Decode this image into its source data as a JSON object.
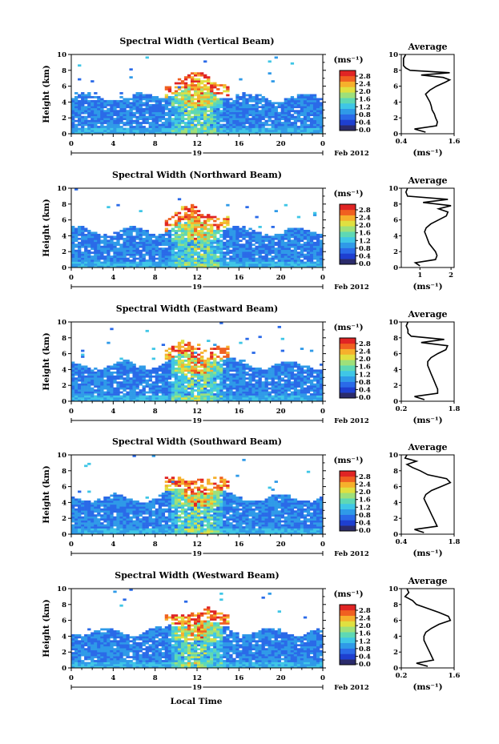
{
  "chart_data": [
    {
      "type": "heatmap",
      "title": "Spectral Width (Vertical Beam)",
      "ylabel": "Height (km)",
      "x_ticks": [
        "0",
        "4",
        "8",
        "12",
        "16",
        "20",
        "0"
      ],
      "day_label": "19",
      "date_label": "Feb 2012",
      "ylim": [
        0,
        10
      ],
      "y_ticks": [
        "0",
        "2",
        "4",
        "6",
        "8",
        "10"
      ],
      "colorbar": {
        "unit": "(ms⁻¹)",
        "ticks": [
          "0.0",
          "0.4",
          "0.8",
          "1.2",
          "1.6",
          "2.0",
          "2.4",
          "2.8"
        ]
      },
      "average": {
        "title": "Average",
        "xlabel": "(ms⁻¹)",
        "xlim": [
          0.4,
          1.6
        ],
        "x_ticks": [
          "0.4",
          "1.6"
        ],
        "height": [
          0.2,
          0.6,
          1.0,
          1.5,
          2.0,
          2.5,
          3.0,
          3.5,
          4.0,
          4.5,
          5.0,
          5.5,
          6.0,
          6.5,
          6.8,
          7.1,
          7.4,
          7.7,
          8.0,
          8.3,
          8.6,
          9.0,
          9.5,
          10.0
        ],
        "value": [
          0.95,
          0.7,
          1.2,
          1.22,
          1.18,
          1.15,
          1.1,
          1.08,
          1.05,
          1.0,
          0.95,
          1.05,
          1.2,
          1.4,
          1.5,
          1.35,
          0.85,
          1.5,
          0.6,
          0.5,
          0.45,
          0.45,
          0.45,
          0.5
        ]
      }
    },
    {
      "type": "heatmap",
      "title": "Spectral Width (Northward Beam)",
      "ylabel": "Height (km)",
      "x_ticks": [
        "0",
        "4",
        "8",
        "12",
        "16",
        "20",
        "0"
      ],
      "day_label": "19",
      "date_label": "Feb 2012",
      "ylim": [
        0,
        10
      ],
      "y_ticks": [
        "0",
        "2",
        "4",
        "6",
        "8",
        "10"
      ],
      "colorbar": {
        "unit": "(ms⁻¹)",
        "ticks": [
          "0.0",
          "0.4",
          "0.8",
          "1.2",
          "1.6",
          "2.0",
          "2.4",
          "2.8"
        ]
      },
      "average": {
        "title": "Average",
        "xlabel": "(ms⁻¹)",
        "xlim": [
          0.4,
          2.1
        ],
        "x_ticks": [
          "1",
          "2"
        ],
        "height": [
          0.2,
          0.6,
          1.0,
          1.5,
          2.0,
          2.5,
          3.0,
          3.5,
          4.0,
          4.5,
          5.0,
          5.5,
          6.0,
          6.5,
          7.0,
          7.4,
          7.8,
          8.2,
          8.6,
          9.0,
          9.5,
          10.0
        ],
        "value": [
          1.0,
          0.85,
          1.5,
          1.55,
          1.5,
          1.4,
          1.3,
          1.25,
          1.2,
          1.15,
          1.2,
          1.35,
          1.6,
          1.85,
          1.9,
          1.6,
          2.0,
          1.1,
          1.9,
          0.6,
          0.55,
          0.6
        ]
      }
    },
    {
      "type": "heatmap",
      "title": "Spectral Width (Eastward Beam)",
      "ylabel": "Height (km)",
      "x_ticks": [
        "0",
        "4",
        "8",
        "12",
        "16",
        "20",
        "0"
      ],
      "day_label": "19",
      "date_label": "Feb 2012",
      "ylim": [
        0,
        10
      ],
      "y_ticks": [
        "0",
        "2",
        "4",
        "6",
        "8",
        "10"
      ],
      "colorbar": {
        "unit": "(ms⁻¹)",
        "ticks": [
          "0.0",
          "0.4",
          "0.8",
          "1.2",
          "1.6",
          "2.0",
          "2.4",
          "2.8"
        ]
      },
      "average": {
        "title": "Average",
        "xlabel": "(ms⁻¹)",
        "xlim": [
          0.2,
          1.8
        ],
        "x_ticks": [
          "0.2",
          "1.8"
        ],
        "height": [
          0.2,
          0.6,
          1.0,
          1.5,
          2.0,
          2.5,
          3.0,
          3.5,
          4.0,
          4.5,
          5.0,
          5.5,
          6.0,
          6.5,
          7.0,
          7.4,
          7.8,
          8.2,
          8.6,
          9.0,
          9.5,
          10.0
        ],
        "value": [
          0.9,
          0.6,
          1.3,
          1.3,
          1.25,
          1.2,
          1.15,
          1.1,
          1.05,
          1.0,
          1.0,
          1.1,
          1.3,
          1.55,
          1.6,
          0.8,
          1.5,
          0.5,
          0.4,
          0.4,
          0.35,
          0.4
        ]
      }
    },
    {
      "type": "heatmap",
      "title": "Spectral Width (Southward Beam)",
      "ylabel": "Height (km)",
      "x_ticks": [
        "0",
        "4",
        "8",
        "12",
        "16",
        "20",
        "0"
      ],
      "day_label": "19",
      "date_label": "Feb 2012",
      "ylim": [
        0,
        10
      ],
      "y_ticks": [
        "0",
        "2",
        "4",
        "6",
        "8",
        "10"
      ],
      "colorbar": {
        "unit": "(ms⁻¹)",
        "ticks": [
          "0.0",
          "0.4",
          "0.8",
          "1.2",
          "1.6",
          "2.0",
          "2.4",
          "2.8"
        ]
      },
      "average": {
        "title": "Average",
        "xlabel": "(ms⁻¹)",
        "xlim": [
          0.4,
          1.8
        ],
        "x_ticks": [
          "0.4",
          "1.8"
        ],
        "height": [
          0.2,
          0.6,
          1.0,
          1.5,
          2.0,
          2.5,
          3.0,
          3.5,
          4.0,
          4.5,
          5.0,
          5.5,
          6.0,
          6.5,
          7.0,
          7.5,
          8.0,
          8.4,
          8.8,
          9.2,
          9.6,
          10.0
        ],
        "value": [
          1.0,
          0.75,
          1.35,
          1.3,
          1.25,
          1.2,
          1.15,
          1.1,
          1.05,
          1.0,
          1.05,
          1.2,
          1.45,
          1.7,
          1.6,
          1.1,
          0.9,
          0.7,
          0.55,
          0.8,
          0.5,
          0.55
        ]
      }
    },
    {
      "type": "heatmap",
      "title": "Spectral Width (Westward Beam)",
      "ylabel": "Height (km)",
      "x_ticks": [
        "0",
        "4",
        "8",
        "12",
        "16",
        "20",
        "0"
      ],
      "day_label": "19",
      "date_label": "Feb 2012",
      "ylim": [
        0,
        10
      ],
      "y_ticks": [
        "0",
        "2",
        "4",
        "6",
        "8",
        "10"
      ],
      "colorbar": {
        "unit": "(ms⁻¹)",
        "ticks": [
          "0.0",
          "0.4",
          "0.8",
          "1.2",
          "1.6",
          "2.0",
          "2.4",
          "2.8"
        ]
      },
      "average": {
        "title": "Average",
        "xlabel": "(ms⁻¹)",
        "xlim": [
          0.2,
          1.6
        ],
        "x_ticks": [
          "0.2",
          "1.6"
        ],
        "height": [
          0.2,
          0.6,
          1.0,
          1.5,
          2.0,
          2.5,
          3.0,
          3.5,
          4.0,
          4.5,
          5.0,
          5.5,
          6.0,
          6.5,
          7.0,
          7.5,
          8.0,
          8.5,
          9.0,
          9.5,
          10.0
        ],
        "value": [
          0.9,
          0.6,
          1.05,
          1.0,
          0.95,
          0.9,
          0.85,
          0.8,
          0.8,
          0.85,
          1.0,
          1.2,
          1.5,
          1.45,
          1.2,
          0.9,
          0.6,
          0.5,
          0.3,
          0.4,
          0.35
        ]
      }
    }
  ],
  "shared_xlabel": "Local Time",
  "colors": {
    "colormap": [
      "#2b2b6b",
      "#1e3fd0",
      "#2a6ae8",
      "#2f9ae8",
      "#3fc6e6",
      "#5ed8b4",
      "#9ee07a",
      "#e0e040",
      "#f6b02c",
      "#f06020",
      "#e02424"
    ]
  }
}
